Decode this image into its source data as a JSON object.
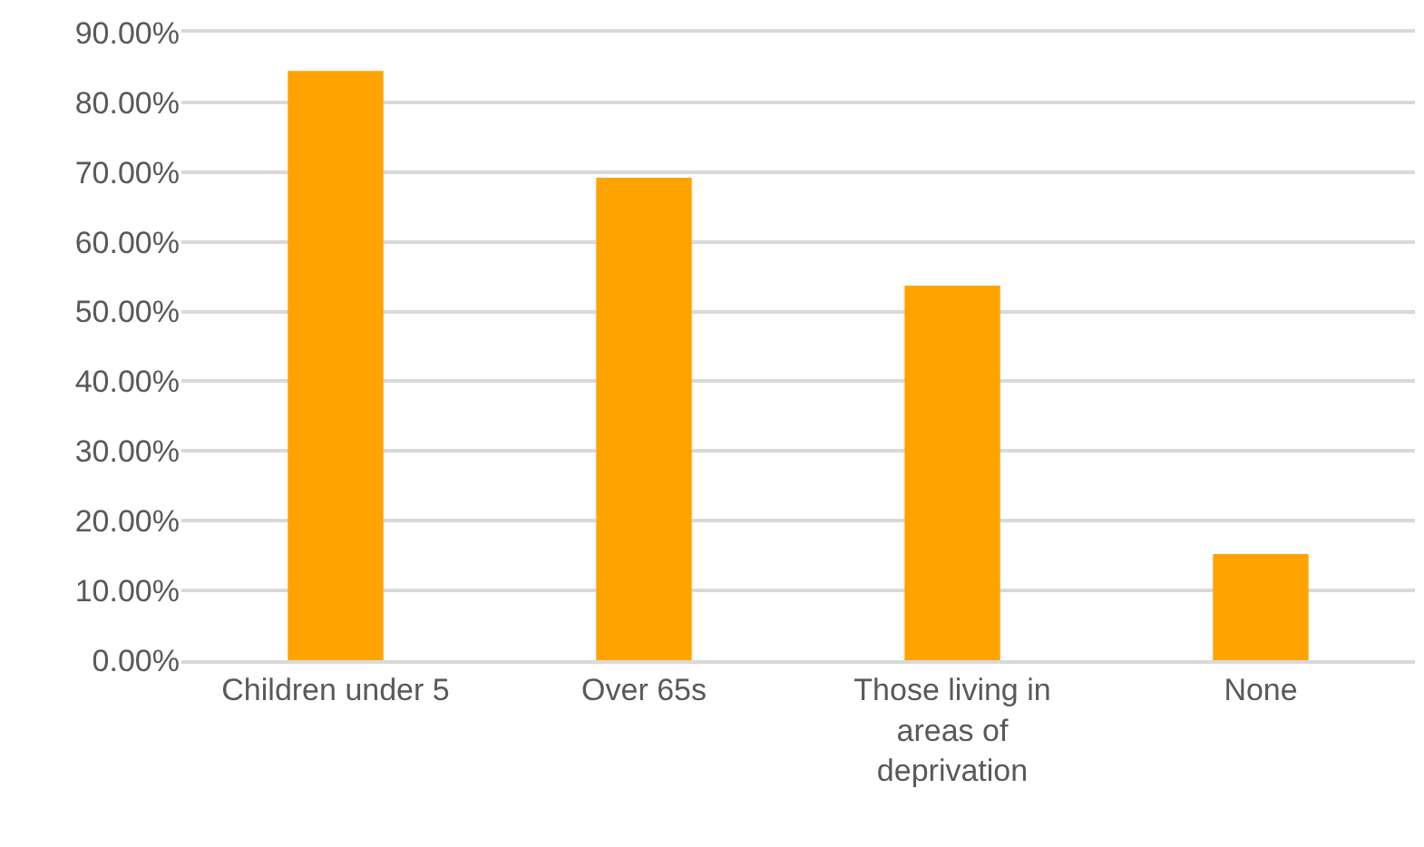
{
  "chart_data": {
    "type": "bar",
    "categories": [
      "Children under 5",
      "Over 65s",
      "Those living in areas of deprivation",
      "None"
    ],
    "values": [
      84.5,
      69.2,
      53.7,
      15.2
    ],
    "color": "#ffa300",
    "ylim": [
      0,
      90
    ],
    "yticks": [
      {
        "value": 0,
        "label": "0.00%"
      },
      {
        "value": 10,
        "label": "10.00%"
      },
      {
        "value": 20,
        "label": "20.00%"
      },
      {
        "value": 30,
        "label": "30.00%"
      },
      {
        "value": 40,
        "label": "40.00%"
      },
      {
        "value": 50,
        "label": "50.00%"
      },
      {
        "value": 60,
        "label": "60.00%"
      },
      {
        "value": 70,
        "label": "70.00%"
      },
      {
        "value": 80,
        "label": "80.00%"
      },
      {
        "value": 90,
        "label": "90.00%"
      }
    ],
    "grid": "y"
  }
}
